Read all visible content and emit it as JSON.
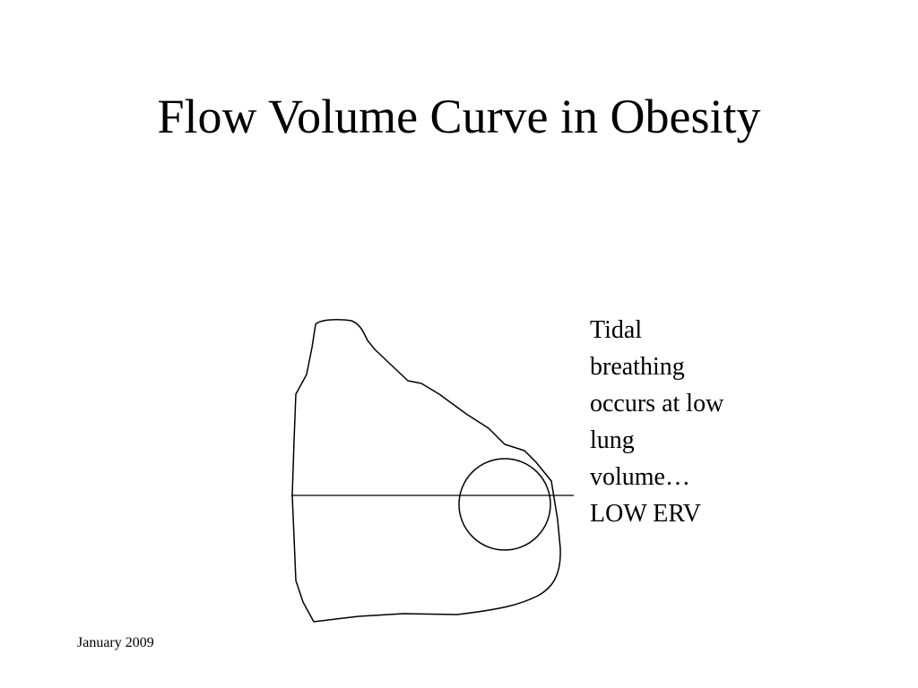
{
  "slide": {
    "title": "Flow Volume Curve in Obesity",
    "caption_lines": [
      "Tidal",
      "breathing",
      "occurs at low",
      "lung",
      "volume…",
      "LOW ERV"
    ],
    "footer_date": "January 2009"
  },
  "diagram": {
    "stroke_color": "#000000",
    "background_color": "#ffffff"
  }
}
